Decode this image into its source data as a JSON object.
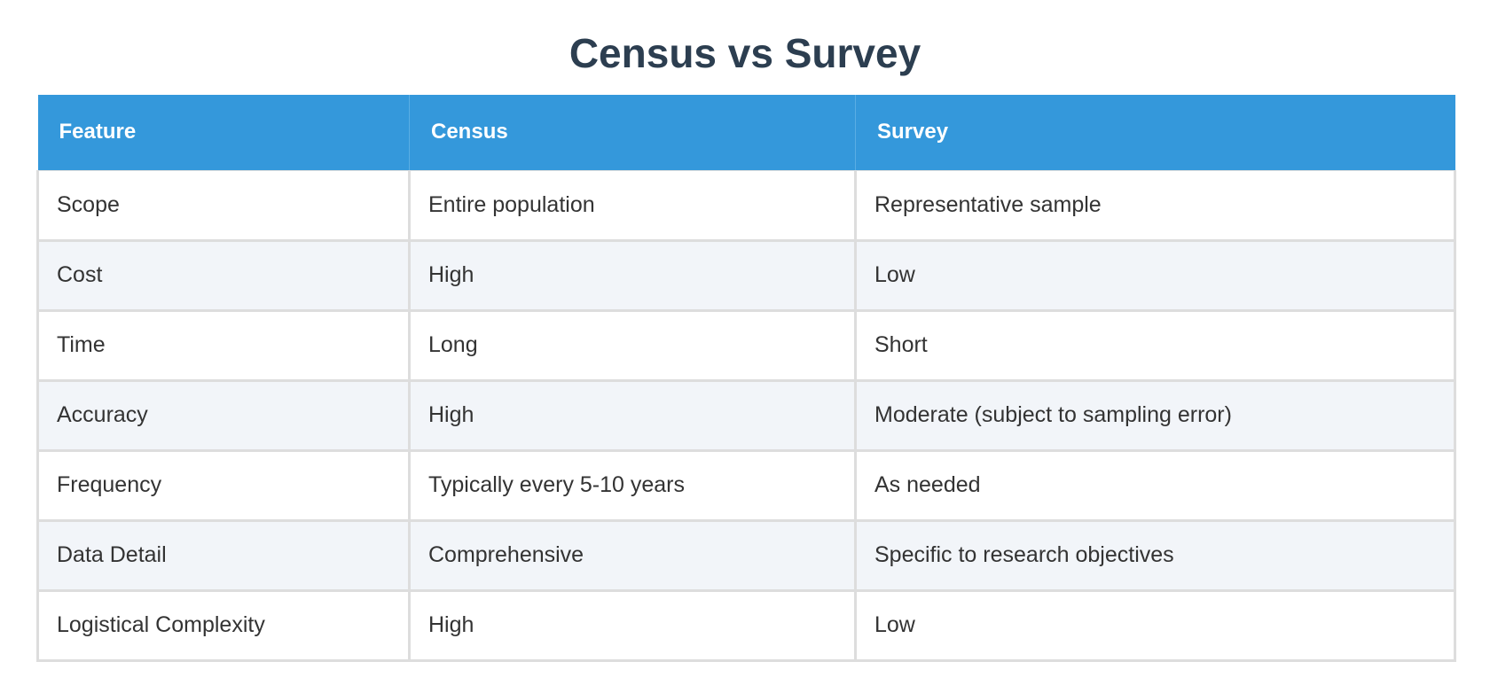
{
  "title": "Census vs Survey",
  "colors": {
    "header_bg": "#3498db",
    "header_text": "#ffffff",
    "title_text": "#2c3e50",
    "row_alt_bg": "#f2f5f9"
  },
  "table": {
    "headers": [
      "Feature",
      "Census",
      "Survey"
    ],
    "rows": [
      [
        "Scope",
        "Entire population",
        "Representative sample"
      ],
      [
        "Cost",
        "High",
        "Low"
      ],
      [
        "Time",
        "Long",
        "Short"
      ],
      [
        "Accuracy",
        "High",
        "Moderate (subject to sampling error)"
      ],
      [
        "Frequency",
        "Typically every 5-10 years",
        "As needed"
      ],
      [
        "Data Detail",
        "Comprehensive",
        "Specific to research objectives"
      ],
      [
        "Logistical Complexity",
        "High",
        "Low"
      ]
    ]
  }
}
